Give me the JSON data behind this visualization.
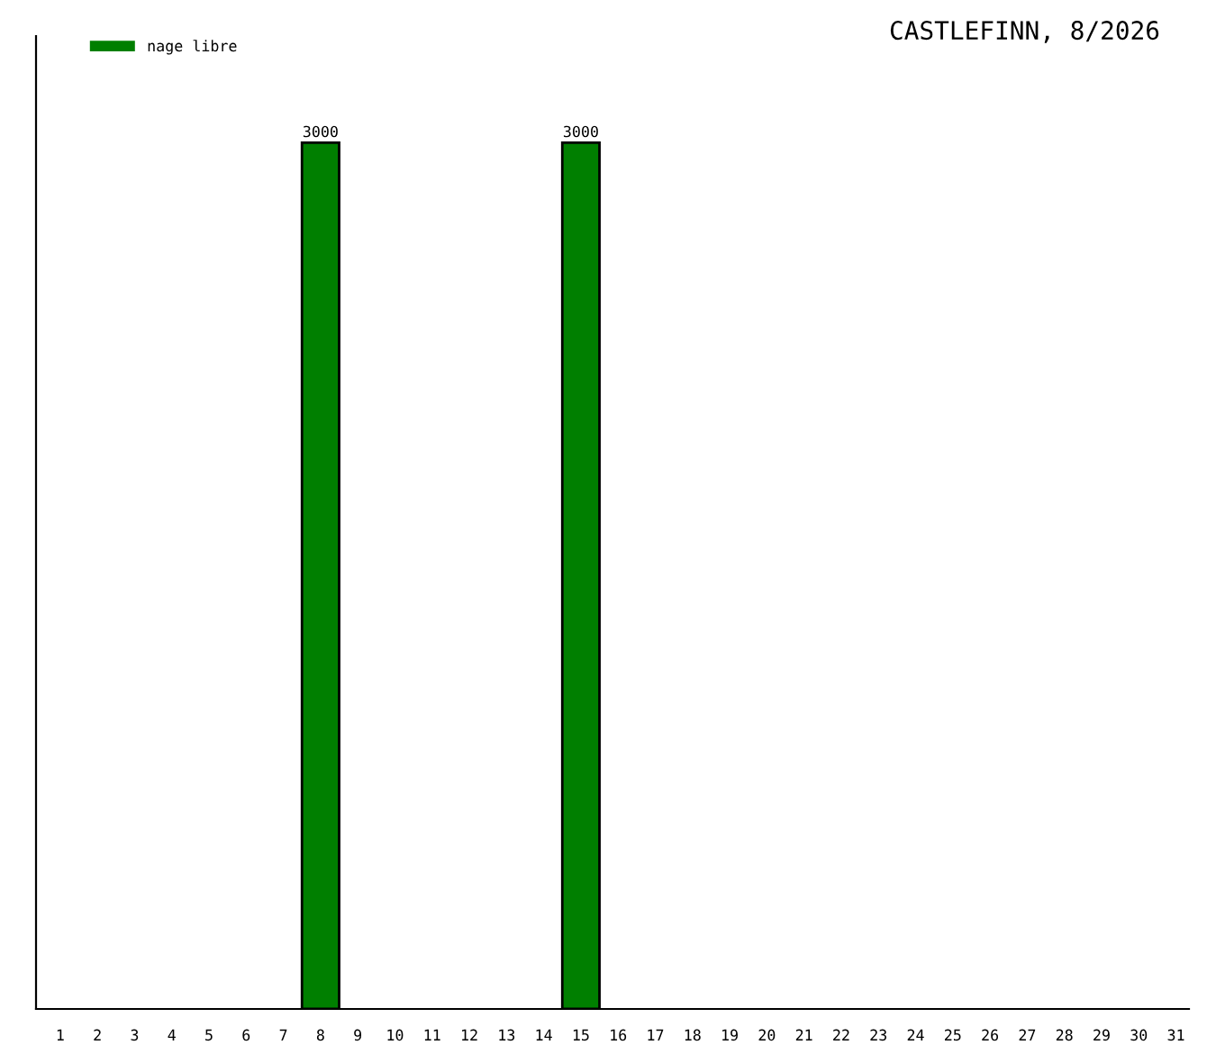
{
  "chart_data": {
    "type": "bar",
    "title": "CASTLEFINN, 8/2026",
    "categories": [
      "1",
      "2",
      "3",
      "4",
      "5",
      "6",
      "7",
      "8",
      "9",
      "10",
      "11",
      "12",
      "13",
      "14",
      "15",
      "16",
      "17",
      "18",
      "19",
      "20",
      "21",
      "22",
      "23",
      "24",
      "25",
      "26",
      "27",
      "28",
      "29",
      "30",
      "31"
    ],
    "series": [
      {
        "name": "nage libre",
        "color": "#007f00",
        "values": [
          null,
          null,
          null,
          null,
          null,
          null,
          null,
          3000,
          null,
          null,
          null,
          null,
          null,
          null,
          3000,
          null,
          null,
          null,
          null,
          null,
          null,
          null,
          null,
          null,
          null,
          null,
          null,
          null,
          null,
          null,
          null
        ]
      }
    ],
    "data_labels": true,
    "legend": "top left",
    "grid": false,
    "tick_labels": "x"
  }
}
